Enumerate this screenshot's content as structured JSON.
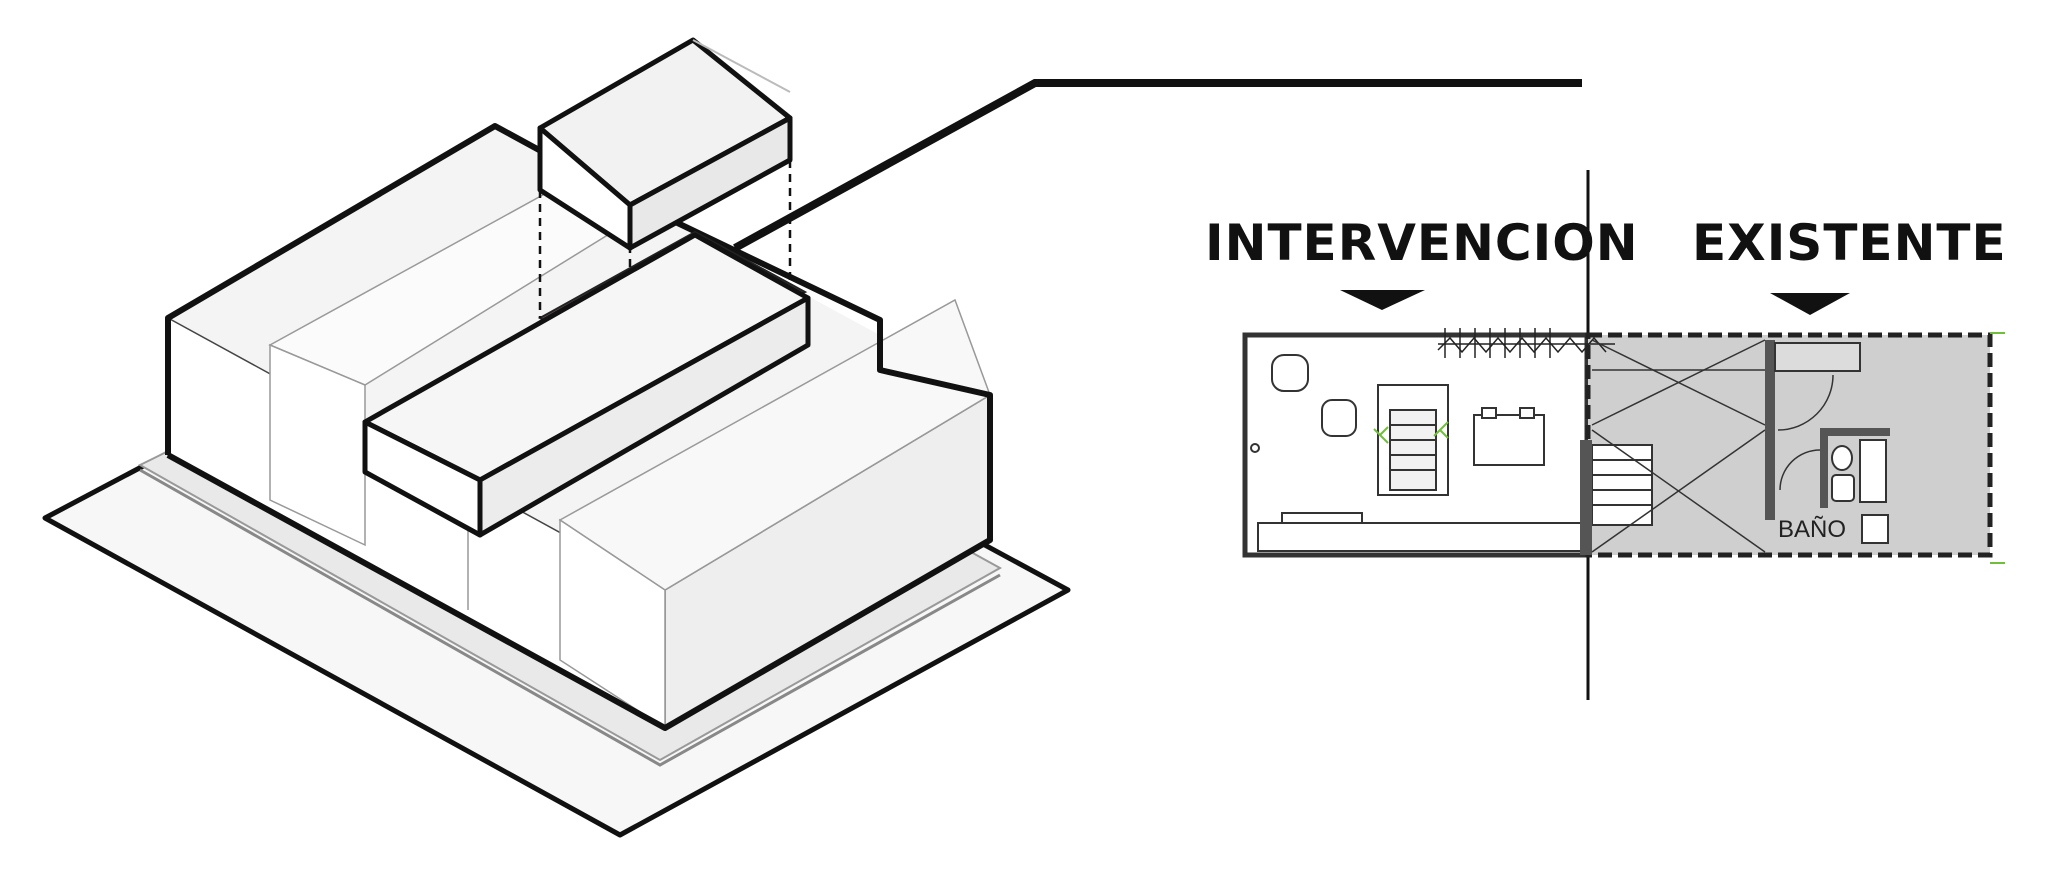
{
  "labels": {
    "intervention": "INTERVENCION",
    "existing": "EXISTENTE",
    "bathroom": "BAÑO"
  },
  "colors": {
    "highlight_fill": "#6b5050",
    "existing_fill": "#cfcfcf",
    "line": "#111111",
    "accent_green": "#6fbf3a"
  }
}
